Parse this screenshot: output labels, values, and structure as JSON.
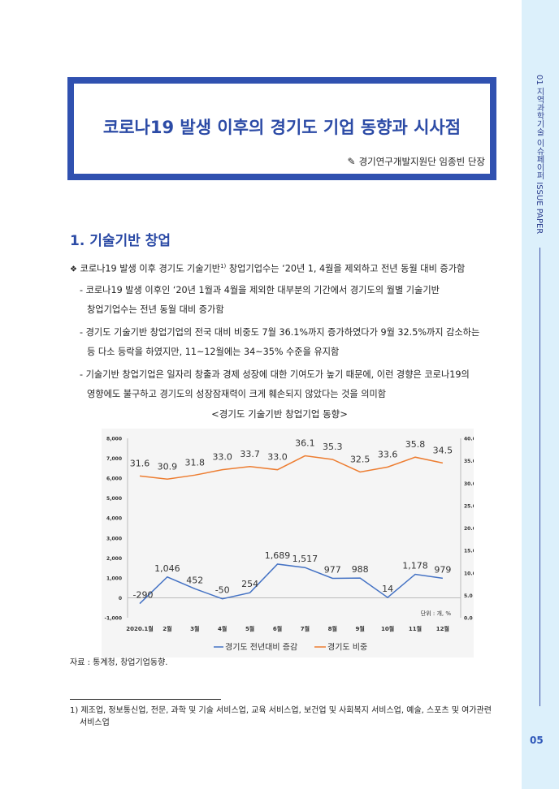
{
  "sidebar": {
    "section_label": "01 지역과학기술 이슈페이퍼 ISSUE PAPER",
    "page_number": "05"
  },
  "header": {
    "title": "코로나19 발생 이후의 경기도 기업 동향과 시사점",
    "author_icon": "pen-icon",
    "author": "경기연구개발지원단 임종빈 단장"
  },
  "section": {
    "heading": "1. 기술기반 창업",
    "bullet_icon": "diamond-cluster-icon",
    "bullet_pre": "코로나19 발생 이후 경기도 기술기반",
    "bullet_sup": "1)",
    "bullet_post": " 창업기업수는 ‘20년 1, 4월을 제외하고 전년 동월 대비 증가함",
    "subs": [
      [
        "- 코로나19 발생 이후인 ‘20년 1월과 4월을 제외한 대부분의 기간에서 경기도의 월별 기술기반",
        "창업기업수는 전년 동월 대비 증가함"
      ],
      [
        "- 경기도 기술기반 창업기업의 전국 대비 비중도 7월 36.1%까지 증가하였다가 9월 32.5%까지 감소하는",
        "등 다소 등락을 하였지만, 11~12월에는 34~35% 수준을 유지함"
      ],
      [
        "- 기술기반 창업기업은 일자리 창출과 경제 성장에 대한 기여도가 높기 때문에, 이런 경향은 코로나19의",
        "영향에도 불구하고 경기도의 성장잠재력이 크게 훼손되지 않았다는 것을 의미함"
      ]
    ]
  },
  "chart_title": "<경기도 기술기반 창업기업 동향>",
  "chart_data": {
    "type": "line",
    "categories": [
      "2020.1월",
      "2월",
      "3월",
      "4월",
      "5월",
      "6월",
      "7월",
      "8월",
      "9월",
      "10월",
      "11월",
      "12월"
    ],
    "series": [
      {
        "name": "경기도 전년대비 증감",
        "axis": "left",
        "color": "#4472c4",
        "values": [
          -290,
          1046,
          452,
          -50,
          254,
          1689,
          1517,
          977,
          988,
          14,
          1178,
          979
        ],
        "labels": [
          "-290",
          "1,046",
          "452",
          "-50",
          "254",
          "1,689",
          "1,517",
          "977",
          "988",
          "14",
          "1,178",
          "979"
        ]
      },
      {
        "name": "경기도 비중",
        "axis": "right",
        "color": "#ed7d31",
        "values": [
          31.6,
          30.9,
          31.8,
          33.0,
          33.7,
          33.0,
          36.1,
          35.3,
          32.5,
          33.6,
          35.8,
          34.5
        ],
        "labels": [
          "31.6",
          "30.9",
          "31.8",
          "33.0",
          "33.7",
          "33.0",
          "36.1",
          "35.3",
          "32.5",
          "33.6",
          "35.8",
          "34.5"
        ]
      }
    ],
    "y_left": {
      "range": [
        -1000,
        8000
      ],
      "ticks": [
        "8,000",
        "7,000",
        "6,000",
        "5,000",
        "4,000",
        "3,000",
        "2,000",
        "1,000",
        "0",
        "-1,000"
      ]
    },
    "y_right": {
      "range": [
        0,
        40
      ],
      "ticks": [
        "40.0",
        "35.0",
        "30.0",
        "25.0",
        "20.0",
        "15.0",
        "10.0",
        "5.0",
        "0.0"
      ]
    },
    "unit_note": "단위 : 개, %",
    "grid": false,
    "legend": "bottom"
  },
  "source": "자료 : 통계청, 창업기업동향.",
  "footnote": {
    "line1": "1) 제조업, 정보통신업, 전문, 과학 및 기술 서비스업, 교육 서비스업, 보건업 및 사회복지 서비스업, 예술, 스포츠 및 여가관련",
    "line2": "서비스업"
  }
}
